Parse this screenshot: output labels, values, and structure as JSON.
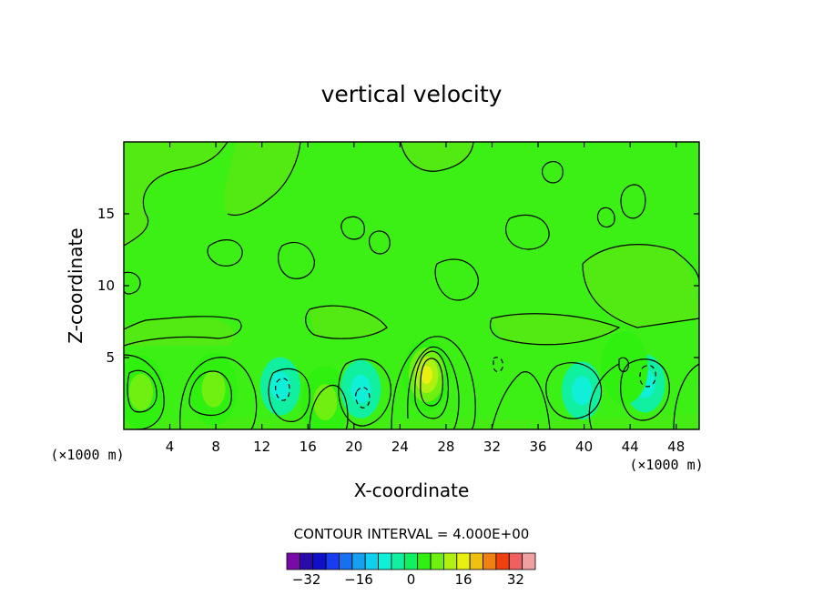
{
  "chart_data": {
    "type": "heatmap",
    "title": "vertical velocity",
    "xlabel": "X-coordinate",
    "ylabel": "Z-coordinate",
    "x_unit": "(×1000 m)",
    "y_unit": "(×1000 m)",
    "xlim": [
      0,
      50
    ],
    "ylim": [
      0,
      20
    ],
    "x_ticks": [
      4,
      8,
      12,
      16,
      20,
      24,
      28,
      32,
      36,
      40,
      44,
      48
    ],
    "y_ticks": [
      5,
      10,
      15
    ],
    "grid": false,
    "contour_interval_label": "CONTOUR INTERVAL = 4.000E+00",
    "contour_interval": 4,
    "background_value": 2,
    "colorbar": {
      "ticks": [
        -32,
        -16,
        0,
        16,
        32
      ],
      "levels": [
        -36,
        -32,
        -28,
        -24,
        -20,
        -16,
        -12,
        -8,
        -4,
        0,
        4,
        8,
        12,
        16,
        20,
        24,
        28,
        32,
        36
      ],
      "colors": [
        "#7a0aa8",
        "#2a0aa8",
        "#1010c8",
        "#1a3cf0",
        "#1670f0",
        "#16a0f0",
        "#10d0f0",
        "#10f0d8",
        "#10f0a0",
        "#10f060",
        "#30f010",
        "#70f010",
        "#b0f010",
        "#e8f010",
        "#f0c010",
        "#f08010",
        "#f04010",
        "#f06060",
        "#f0a0a0"
      ]
    },
    "features": [
      {
        "kind": "updraft",
        "x": 26.3,
        "z": 3.8,
        "peak": 18
      },
      {
        "kind": "updraft",
        "x": 1.5,
        "z": 2.6,
        "peak": 10
      },
      {
        "kind": "updraft",
        "x": 7.8,
        "z": 2.8,
        "peak": 10
      },
      {
        "kind": "updraft",
        "x": 17.5,
        "z": 1.9,
        "peak": 10
      },
      {
        "kind": "downdraft",
        "x": 13.6,
        "z": 3.0,
        "peak": -6
      },
      {
        "kind": "downdraft",
        "x": 20.6,
        "z": 2.8,
        "peak": -6
      },
      {
        "kind": "downdraft",
        "x": 39.8,
        "z": 2.7,
        "peak": -4
      },
      {
        "kind": "downdraft",
        "x": 45.3,
        "z": 3.2,
        "peak": -6
      },
      {
        "kind": "updraft",
        "x": 43.5,
        "z": 4.3,
        "peak": 6
      }
    ]
  }
}
